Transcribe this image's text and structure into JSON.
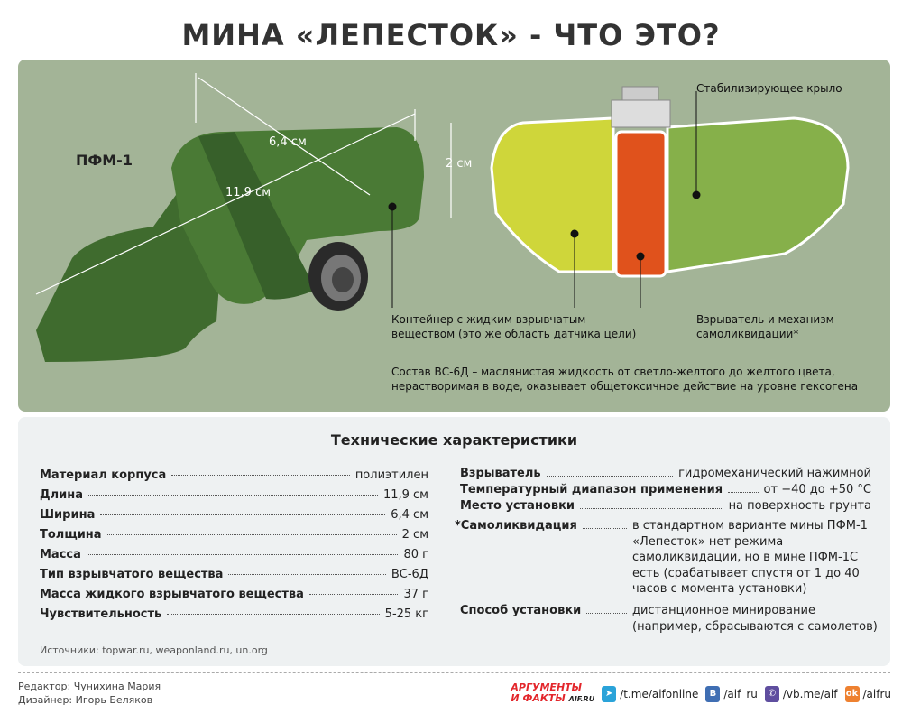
{
  "title": "МИНА «ЛЕПЕСТОК» - ЧТО ЭТО?",
  "diagram": {
    "model": "ПФМ-1",
    "dim_width": "6,4 см",
    "dim_length": "11,9 см",
    "dim_thickness": "2 см",
    "label_wing": "Стабилизирующее крыло",
    "label_container_1": "Контейнер с жидким взрывчатым",
    "label_container_2": "веществом (это же область датчика цели)",
    "label_fuse_1": "Взрыватель и механизм",
    "label_fuse_2": "самоликвидации*",
    "note_1": "Состав ВС-6Д – маслянистая жидкость от светло-желтого до желтого цвета,",
    "note_2": "нерастворимая в воде, оказывает общетоксичное действие на уровне гексогена",
    "colors": {
      "body": "#3f6b2e",
      "explosive": "#cfd63a",
      "fuse": "#e0521c",
      "wing": "#86b04a"
    }
  },
  "specs": {
    "title": "Технические характеристики",
    "left": [
      {
        "k": "Материал корпуса",
        "v": "полиэтилен"
      },
      {
        "k": "Длина",
        "v": "11,9 см"
      },
      {
        "k": "Ширина",
        "v": "6,4 см"
      },
      {
        "k": "Толщина",
        "v": "2 см"
      },
      {
        "k": "Масса",
        "v": "80 г"
      },
      {
        "k": "Тип взрывчатого вещества",
        "v": "ВС-6Д"
      },
      {
        "k": "Масса жидкого взрывчатого вещества",
        "v": "37 г"
      },
      {
        "k": "Чувствительность",
        "v": "5-25 кг"
      }
    ],
    "right": [
      {
        "k": "Взрыватель",
        "v": "гидромеханический нажимной"
      },
      {
        "k": "Температурный диапазон применения",
        "v": "от −40 до +50 °С"
      },
      {
        "k": "Место установки",
        "v": "на поверхность грунта"
      },
      {
        "k": "*Самоликвидация",
        "v": [
          "в стандартном варианте мины ПФМ-1",
          "«Лепесток» нет режима",
          "самоликвидации, но в мине ПФМ-1С",
          "есть (срабатывает спустя от 1 до 40",
          "часов с момента установки)"
        ]
      },
      {
        "k": "Способ установки",
        "v": [
          "дистанционное минирование",
          "(например, сбрасываются с самолетов)"
        ]
      }
    ],
    "sources": "Источники: topwar.ru, weaponland.ru, un.org"
  },
  "footer": {
    "editor": "Редактор: Чунихина Мария",
    "designer": "Дизайнер: Игорь Беляков",
    "logo_1": "АРГУМЕНТЫ",
    "logo_2": "И ФАКТЫ",
    "logo_3": "AIF.RU",
    "telegram": "/t.me/aifonline",
    "vk": "/aif_ru",
    "viber": "/vb.me/aif",
    "ok": "/aifru"
  }
}
